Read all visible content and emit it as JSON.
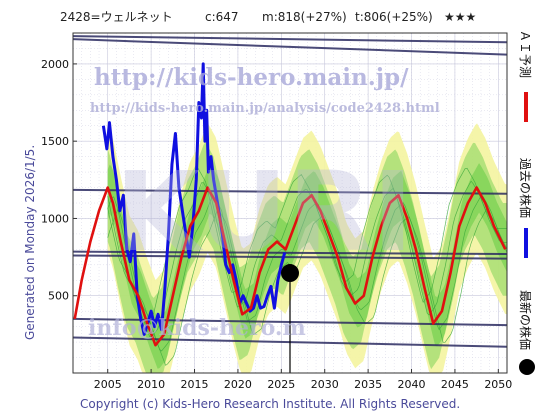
{
  "header": {
    "code": "2428=ウェルネット",
    "current": "c:647",
    "mid_target": "m:818(+27%)",
    "target": "t:806(+25%)",
    "rating": "★★★"
  },
  "watermarks": {
    "url_large": "http://kids-hero.main.jp/",
    "url_small": "http://kids-hero.main.jp/analysis/code2428.html",
    "big_letters": "KURI",
    "email": "info@kids-hero.m"
  },
  "left_label": "Generated on Monday 2026/1/5.",
  "footer": "Copyright (c) Kids-Hero Research Institute. All Rights Reserved.",
  "legend": {
    "ai_forecast": "ＡＩ予測",
    "past_price": "過去の株価",
    "latest_price": "最新の株価"
  },
  "colors": {
    "past_price": "#1010e0",
    "ai_forecast": "#e01010",
    "band_green": "#66cc44",
    "band_yellow": "#f4f4a0",
    "hlines": "#2a2a60",
    "latest": "#000000"
  },
  "chart_data": {
    "type": "line",
    "xlim": [
      2001,
      2051
    ],
    "ylim": [
      0,
      2200
    ],
    "xticks": [
      "2005",
      "2010",
      "2015",
      "2020",
      "2025",
      "2030",
      "2035",
      "2040",
      "2045",
      "2050"
    ],
    "yticks": [
      "500",
      "1000",
      "1500",
      "2000"
    ],
    "grid": true,
    "latest_point": {
      "x": 2026,
      "y": 647
    },
    "hlines": [
      {
        "y0": 2180,
        "y1": 2140
      },
      {
        "y0": 2160,
        "y1": 2060
      },
      {
        "y0": 1185,
        "y1": 1160
      },
      {
        "y0": 785,
        "y1": 770
      },
      {
        "y0": 760,
        "y1": 740
      },
      {
        "y0": 350,
        "y1": 310
      },
      {
        "y0": 230,
        "y1": 170
      }
    ],
    "series": [
      {
        "name": "過去の株価",
        "x": [
          2004.5,
          2004.9,
          2005.2,
          2005.6,
          2006.0,
          2006.4,
          2006.8,
          2007.2,
          2007.6,
          2008.0,
          2008.4,
          2008.8,
          2009.2,
          2009.6,
          2010.0,
          2010.4,
          2010.8,
          2011.2,
          2011.6,
          2012.0,
          2012.4,
          2012.8,
          2013.2,
          2013.6,
          2014.0,
          2014.4,
          2014.8,
          2015.2,
          2015.5,
          2015.8,
          2016.0,
          2016.2,
          2016.4,
          2016.6,
          2016.9,
          2017.2,
          2017.5,
          2017.8,
          2018.2,
          2018.6,
          2019.0,
          2019.4,
          2019.8,
          2020.2,
          2020.6,
          2021.0,
          2021.4,
          2021.8,
          2022.2,
          2022.6,
          2023.0,
          2023.4,
          2023.8,
          2024.2,
          2024.6,
          2025.0,
          2025.4
        ],
        "y": [
          1600,
          1450,
          1620,
          1400,
          1250,
          1050,
          1150,
          800,
          720,
          900,
          500,
          350,
          250,
          320,
          400,
          300,
          380,
          280,
          560,
          900,
          1350,
          1550,
          1200,
          1050,
          900,
          750,
          950,
          1250,
          1750,
          1650,
          2000,
          1500,
          1700,
          1300,
          1400,
          1250,
          1150,
          1050,
          900,
          700,
          650,
          700,
          600,
          450,
          500,
          450,
          400,
          420,
          500,
          420,
          430,
          500,
          560,
          420,
          600,
          700,
          780
        ]
      },
      {
        "name": "ＡＩ予測",
        "x": [
          2001.2,
          2002,
          2003,
          2004,
          2005,
          2005.6,
          2006.5,
          2007.5,
          2008.5,
          2009.5,
          2010.5,
          2011.5,
          2012.5,
          2013.5,
          2014.5,
          2015.5,
          2016.5,
          2017.5,
          2018.5,
          2019.5,
          2020.5,
          2021.5,
          2022.5,
          2023.5,
          2024.5,
          2025.5,
          2026.5,
          2027.5,
          2028.5,
          2029.5,
          2030.5,
          2031.5,
          2032.5,
          2033.5,
          2034.5,
          2035.5,
          2036.5,
          2037.5,
          2038.5,
          2039.5,
          2040.5,
          2041.5,
          2042.5,
          2043.5,
          2044.5,
          2045.5,
          2046.5,
          2047.5,
          2048.5,
          2049.5,
          2050.8
        ],
        "y": [
          350,
          600,
          850,
          1050,
          1200,
          1100,
          850,
          600,
          500,
          330,
          180,
          250,
          500,
          750,
          950,
          1050,
          1200,
          1100,
          850,
          600,
          380,
          420,
          650,
          800,
          850,
          800,
          950,
          1100,
          1150,
          1050,
          900,
          750,
          550,
          450,
          500,
          750,
          950,
          1100,
          1150,
          1000,
          800,
          550,
          320,
          400,
          650,
          950,
          1100,
          1200,
          1100,
          950,
          800
        ]
      }
    ]
  }
}
